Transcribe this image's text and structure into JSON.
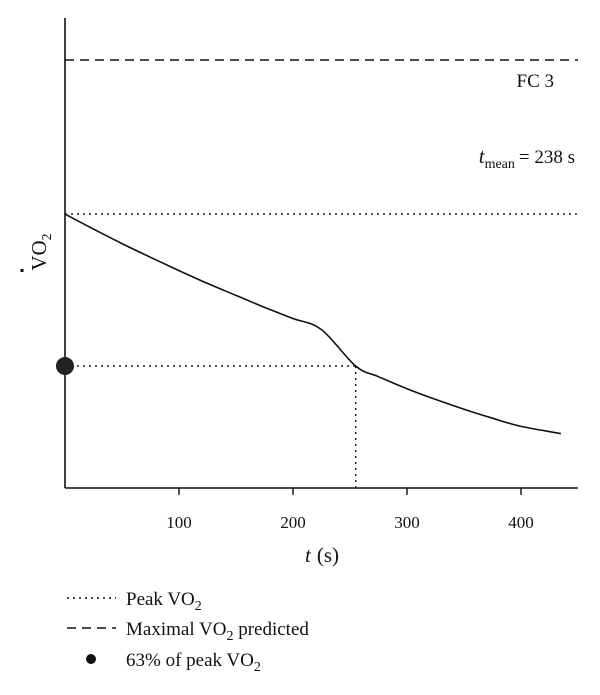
{
  "chart_data": {
    "type": "line",
    "xlabel": {
      "var": "t",
      "unit": "(s)"
    },
    "ylabel": {
      "main": "VO",
      "sub": "2"
    },
    "xlim": [
      0,
      450
    ],
    "x_ticks": [
      100,
      200,
      300,
      400
    ],
    "ylim": [
      0,
      1
    ],
    "reference_lines": {
      "maximal_vo2_predicted": 1.0,
      "peak_vo2": 0.64,
      "sixty_three_percent_of_peak": 0.285
    },
    "annotations": {
      "group_label": "FC 3",
      "t_mean_var": "t",
      "t_mean_sub": "mean",
      "t_mean_value": "= 238 s",
      "t_mean_x": 255
    },
    "series": [
      {
        "x": [
          0,
          25,
          50,
          75,
          100,
          125,
          150,
          175,
          200,
          225,
          255,
          275,
          300,
          325,
          350,
          375,
          400,
          435
        ],
        "y": [
          0.64,
          0.605,
          0.571,
          0.539,
          0.508,
          0.478,
          0.45,
          0.422,
          0.396,
          0.37,
          0.285,
          0.26,
          0.232,
          0.207,
          0.184,
          0.163,
          0.144,
          0.127
        ]
      }
    ],
    "legend": {
      "placement": "bottom-left",
      "items": [
        {
          "style": "dotted",
          "pre": "Peak VO",
          "sub": "2",
          "post": ""
        },
        {
          "style": "dashed",
          "pre": "Maximal VO",
          "sub": "2",
          "post": " predicted"
        },
        {
          "style": "dot",
          "pre": "63% of peak VO",
          "sub": "2",
          "post": ""
        }
      ]
    }
  }
}
